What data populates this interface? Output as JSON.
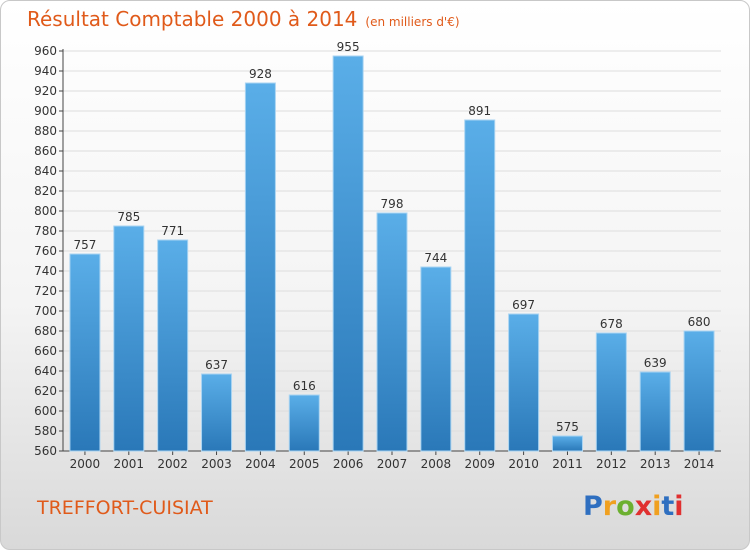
{
  "chart_data": {
    "type": "bar",
    "title": "Résultat Comptable 2000 à 2014",
    "subtitle": "(en milliers d'€)",
    "categories": [
      "2000",
      "2001",
      "2002",
      "2003",
      "2004",
      "2005",
      "2006",
      "2007",
      "2008",
      "2009",
      "2010",
      "2011",
      "2012",
      "2013",
      "2014"
    ],
    "values": [
      757,
      785,
      771,
      637,
      928,
      616,
      955,
      798,
      744,
      891,
      697,
      575,
      678,
      639,
      680
    ],
    "ylim": [
      560,
      960
    ],
    "yticks": [
      560,
      580,
      600,
      620,
      640,
      660,
      680,
      700,
      720,
      740,
      760,
      780,
      800,
      820,
      840,
      860,
      880,
      900,
      920,
      940,
      960
    ],
    "grid": true,
    "xlabel": "",
    "ylabel": ""
  },
  "commune": "TREFFORT-CUISIAT",
  "brand": {
    "letters": [
      "P",
      "r",
      "o",
      "x",
      "i",
      "t",
      "i"
    ],
    "colors": [
      "#2f6fc0",
      "#f0a020",
      "#6cb030",
      "#e03030",
      "#f0a020",
      "#2f6fc0",
      "#e03030"
    ]
  },
  "colors": {
    "title": "#e05a1a",
    "bar_top": "#5aaee8",
    "bar_bottom": "#2a78b8",
    "grid": "#dddddd"
  }
}
